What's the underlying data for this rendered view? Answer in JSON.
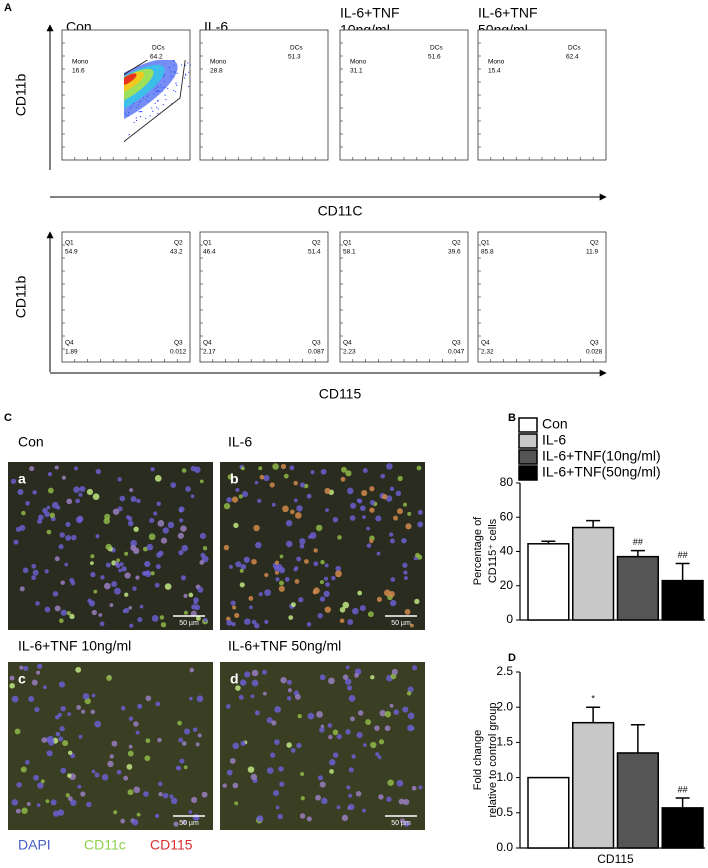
{
  "panel_labels": [
    "A",
    "B",
    "C",
    "D"
  ],
  "flow": {
    "y_axis": "CD11b",
    "x_axis_top": "CD11C",
    "x_axis_bottom": "CD115",
    "groups": [
      [
        "Con"
      ],
      [
        "IL-6"
      ],
      [
        "IL-6+TNF",
        "10ng/ml"
      ],
      [
        "IL-6+TNF",
        "50ng/ml"
      ]
    ],
    "gate_names": {
      "mono": "Mono",
      "dcs": "DCs"
    },
    "gates": [
      {
        "mono": "16.6",
        "dcs": "64.2"
      },
      {
        "mono": "28.8",
        "dcs": "51.3"
      },
      {
        "mono": "31.1",
        "dcs": "51.6"
      },
      {
        "mono": "15.4",
        "dcs": "62.4"
      }
    ],
    "quadrant_names": [
      "Q1",
      "Q2",
      "Q3",
      "Q4"
    ],
    "quadrants": [
      [
        "54.9",
        "43.2",
        "0.012",
        "1.89"
      ],
      [
        "46.4",
        "51.4",
        "0.087",
        "2.17"
      ],
      [
        "58.1",
        "39.6",
        "0.047",
        "2.23"
      ],
      [
        "85.8",
        "11.9",
        "0.028",
        "2.32"
      ]
    ]
  },
  "microscopy": {
    "images": [
      {
        "title": "Con",
        "letter": "a"
      },
      {
        "title": "IL-6",
        "letter": "b"
      },
      {
        "title": "IL-6+TNF 10ng/ml",
        "letter": "c"
      },
      {
        "title": "IL-6+TNF 50ng/ml",
        "letter": "d"
      }
    ],
    "scale_bar": "50 µm",
    "legend": [
      {
        "text": "DAPI",
        "color": "#4a5fc9"
      },
      {
        "text": "CD11c",
        "color": "#8fd24a"
      },
      {
        "text": "CD115",
        "color": "#d83030"
      }
    ]
  },
  "chart_data": [
    {
      "type": "bar",
      "y_label": [
        "Percentage of",
        "CD115⁺ cells"
      ],
      "ylim": [
        0,
        80
      ],
      "yticks": [
        0,
        20,
        40,
        60,
        80
      ],
      "series": [
        {
          "name": "Con",
          "color": "#ffffff",
          "values": [
            44.5
          ],
          "errors": [
            1.5
          ]
        },
        {
          "name": "IL-6",
          "color": "#c8c8c8",
          "values": [
            54
          ],
          "errors": [
            4
          ]
        },
        {
          "name": "IL-6+TNF(10ng/ml)",
          "color": "#555555",
          "values": [
            37
          ],
          "errors": [
            3.5
          ],
          "annotation": "##"
        },
        {
          "name": "IL-6+TNF(50ng/ml)",
          "color": "#000000",
          "values": [
            23
          ],
          "errors": [
            10
          ],
          "annotation": "##"
        }
      ]
    },
    {
      "type": "bar",
      "categories": [
        "CD115"
      ],
      "y_label": [
        "Fold change",
        "relative to control group"
      ],
      "ylim": [
        0,
        2.5
      ],
      "yticks": [
        {
          "value": 0,
          "label": "0.0"
        },
        {
          "value": 0.5,
          "label": "0.5"
        },
        {
          "value": 1,
          "label": "1.0"
        },
        {
          "value": 1.5,
          "label": "1.5"
        },
        {
          "value": 2,
          "label": "2.0"
        },
        {
          "value": 2.5,
          "label": "2.5"
        }
      ],
      "series": [
        {
          "color": "#ffffff",
          "values": [
            1.0
          ]
        },
        {
          "color": "#c8c8c8",
          "values": [
            1.78
          ],
          "errors": [
            0.22
          ],
          "annotation": "*"
        },
        {
          "color": "#555555",
          "values": [
            1.35
          ],
          "errors": [
            0.4
          ]
        },
        {
          "color": "#000000",
          "values": [
            0.57
          ],
          "errors": [
            0.14
          ],
          "annotation": "##"
        }
      ]
    }
  ]
}
